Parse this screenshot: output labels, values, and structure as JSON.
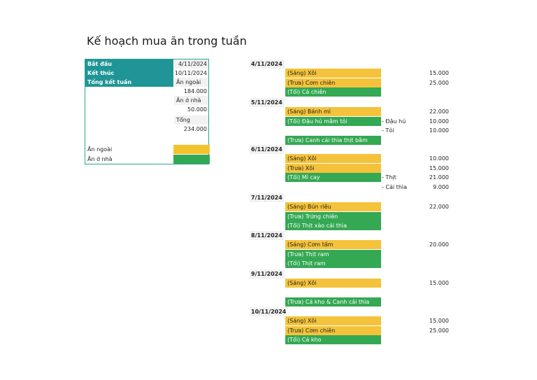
{
  "title": "Kế hoạch mua ăn trong tuần",
  "summary": {
    "start_label": "Bắt đầu",
    "start_value": "4/11/2024",
    "end_label": "Kết thúc",
    "end_value": "10/11/2024",
    "total_label": "Tổng kết tuần",
    "eat_out_label": "Ăn ngoài",
    "eat_out_value": "184.000",
    "eat_home_label": "Ăn ở nhà",
    "eat_home_value": "50.000",
    "sum_label": "Tổng",
    "sum_value": "234.000",
    "legend_out": "Ăn ngoài",
    "legend_home": "Ăn ở nhà",
    "legend_out_color": "#f5c22d",
    "legend_home_color": "#34a853"
  },
  "days": [
    {
      "date": "4/11/2024",
      "rows": [
        {
          "meal": "(Sáng) Xôi",
          "type": "out",
          "sub": "",
          "price": "15.000"
        },
        {
          "meal": "(Trưa) Cơm chiên",
          "type": "out",
          "sub": "",
          "price": "25.000"
        },
        {
          "meal": "(Tối) Cá chiên",
          "type": "home",
          "sub": "",
          "price": ""
        }
      ]
    },
    {
      "date": "5/11/2024",
      "rows": [
        {
          "meal": "(Sáng) Bánh mì",
          "type": "out",
          "sub": "",
          "price": "22.000"
        },
        {
          "meal": "(Tối) Đậu hủ mắm tỏi",
          "type": "home",
          "sub": "- Đậu hủ",
          "price": "10.000"
        },
        {
          "meal": "",
          "type": "none",
          "sub": "- Tỏi",
          "price": "10.000"
        },
        {
          "meal": "(Trưa) Canh cải thìa thịt bằm",
          "type": "home",
          "sub": "",
          "price": ""
        }
      ]
    },
    {
      "date": "6/11/2024",
      "rows": [
        {
          "meal": "(Sáng) Xôi",
          "type": "out",
          "sub": "",
          "price": "10.000"
        },
        {
          "meal": "(Trưa) Xôi",
          "type": "out",
          "sub": "",
          "price": "15.000"
        },
        {
          "meal": "(Tối) Mì cay",
          "type": "home",
          "sub": "- Thịt",
          "price": "21.000"
        },
        {
          "meal": "",
          "type": "none",
          "sub": "- Cải thìa",
          "price": "9.000"
        }
      ]
    },
    {
      "date": "7/11/2024",
      "rows": [
        {
          "meal": "(Sáng) Bún riêu",
          "type": "out",
          "sub": "",
          "price": "22.000"
        },
        {
          "meal": "(Trưa) Trứng chiên",
          "type": "home",
          "sub": "",
          "price": ""
        },
        {
          "meal": "(Tối) Thịt xào cải thìa",
          "type": "home",
          "sub": "",
          "price": ""
        }
      ]
    },
    {
      "date": "8/11/2024",
      "rows": [
        {
          "meal": "(Sáng) Cơm tấm",
          "type": "out",
          "sub": "",
          "price": "20.000"
        },
        {
          "meal": "(Trưa) Thịt ram",
          "type": "home",
          "sub": "",
          "price": ""
        },
        {
          "meal": "(Tối) Thịt ram",
          "type": "home",
          "sub": "",
          "price": ""
        }
      ]
    },
    {
      "date": "9/11/2024",
      "rows": [
        {
          "meal": "(Sáng) Xôi",
          "type": "out",
          "sub": "",
          "price": "15.000"
        },
        {
          "meal": "",
          "type": "none",
          "sub": "",
          "price": ""
        },
        {
          "meal": "(Trưa) Cá kho & Canh cải thìa",
          "type": "home",
          "sub": "",
          "price": ""
        }
      ]
    },
    {
      "date": "10/11/2024",
      "rows": [
        {
          "meal": "(Sáng) Xôi",
          "type": "out",
          "sub": "",
          "price": "15.000"
        },
        {
          "meal": "(Trưa) Cơm chiên",
          "type": "out",
          "sub": "",
          "price": "25.000"
        },
        {
          "meal": "(Tối) Cá kho",
          "type": "home",
          "sub": "",
          "price": ""
        }
      ]
    }
  ]
}
